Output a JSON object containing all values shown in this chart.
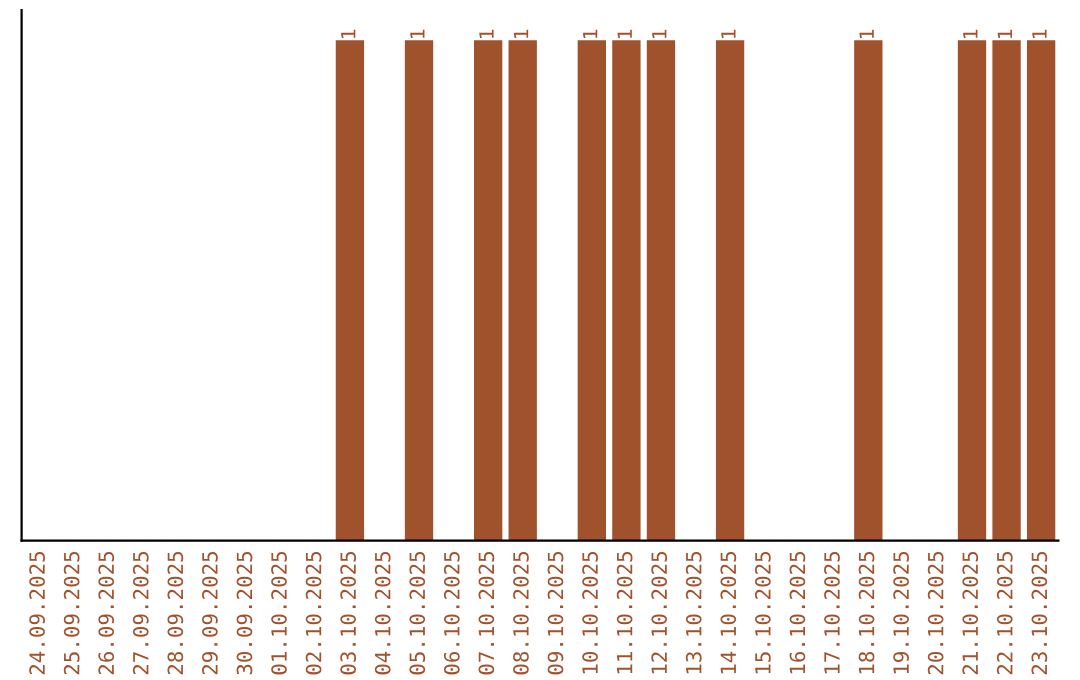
{
  "chart_data": {
    "type": "bar",
    "categories": [
      "24.09.2025",
      "25.09.2025",
      "26.09.2025",
      "27.09.2025",
      "28.09.2025",
      "29.09.2025",
      "30.09.2025",
      "01.10.2025",
      "02.10.2025",
      "03.10.2025",
      "04.10.2025",
      "05.10.2025",
      "06.10.2025",
      "07.10.2025",
      "08.10.2025",
      "09.10.2025",
      "10.10.2025",
      "11.10.2025",
      "12.10.2025",
      "13.10.2025",
      "14.10.2025",
      "15.10.2025",
      "16.10.2025",
      "17.10.2025",
      "18.10.2025",
      "19.10.2025",
      "20.10.2025",
      "21.10.2025",
      "22.10.2025",
      "23.10.2025"
    ],
    "values": [
      0,
      0,
      0,
      0,
      0,
      0,
      0,
      0,
      0,
      1,
      0,
      1,
      0,
      1,
      1,
      0,
      1,
      1,
      1,
      0,
      1,
      0,
      0,
      0,
      1,
      0,
      0,
      1,
      1,
      1
    ],
    "value_labels": [
      null,
      null,
      null,
      null,
      null,
      null,
      null,
      null,
      null,
      "1",
      null,
      "1",
      null,
      "1",
      "1",
      null,
      "1",
      "1",
      "1",
      null,
      "1",
      null,
      null,
      null,
      "1",
      null,
      null,
      "1",
      "1",
      "1"
    ],
    "color": "#a0522d",
    "tick_labels": "x",
    "grid": false,
    "legend": false
  }
}
